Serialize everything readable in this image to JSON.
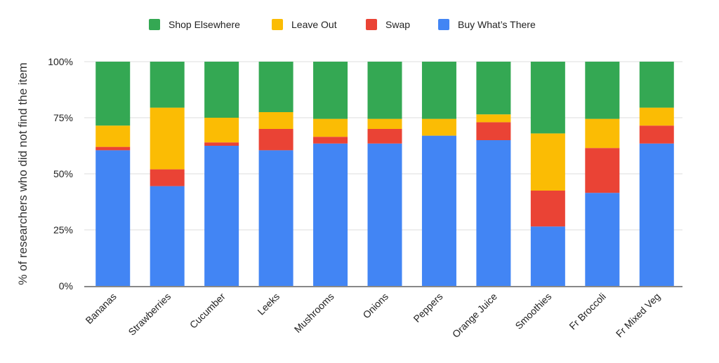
{
  "chart_data": {
    "type": "bar",
    "stacked": true,
    "percent": true,
    "title": "",
    "xlabel": "",
    "ylabel": "% of researchers who did not find the item",
    "ylim": [
      0,
      100
    ],
    "y_ticks": [
      "0%",
      "25%",
      "50%",
      "75%",
      "100%"
    ],
    "grid": true,
    "legend_position": "top",
    "categories": [
      "Bananas",
      "Strawberries",
      "Cucumber",
      "Leeks",
      "Mushrooms",
      "Onions",
      "Peppers",
      "Orange Juice",
      "Smoothies",
      "Fr Broccoli",
      "Fr Mixed Veg"
    ],
    "series": [
      {
        "name": "Buy What's There",
        "color": "#4285F4",
        "values": [
          60.5,
          44.5,
          62.5,
          60.5,
          63.5,
          63.5,
          67,
          65,
          26.5,
          41.5,
          63.5
        ]
      },
      {
        "name": "Swap",
        "color": "#EA4335",
        "values": [
          1.5,
          7.5,
          1.5,
          9.5,
          3,
          6.5,
          0,
          8,
          16,
          20,
          8
        ]
      },
      {
        "name": "Leave Out",
        "color": "#FBBC04",
        "values": [
          9.5,
          27.5,
          11,
          7.5,
          8,
          4.5,
          7.5,
          3.5,
          25.5,
          13,
          8
        ]
      },
      {
        "name": "Shop Elsewhere",
        "color": "#34A853",
        "values": [
          28.5,
          20.5,
          25,
          22.5,
          25.5,
          25.5,
          25.5,
          23.5,
          32,
          25.5,
          20.5
        ]
      }
    ],
    "legend_order": [
      "Shop Elsewhere",
      "Leave Out",
      "Swap",
      "Buy What’s There"
    ]
  },
  "colors": {
    "grid": "#dddddd",
    "axis": "#888888"
  }
}
